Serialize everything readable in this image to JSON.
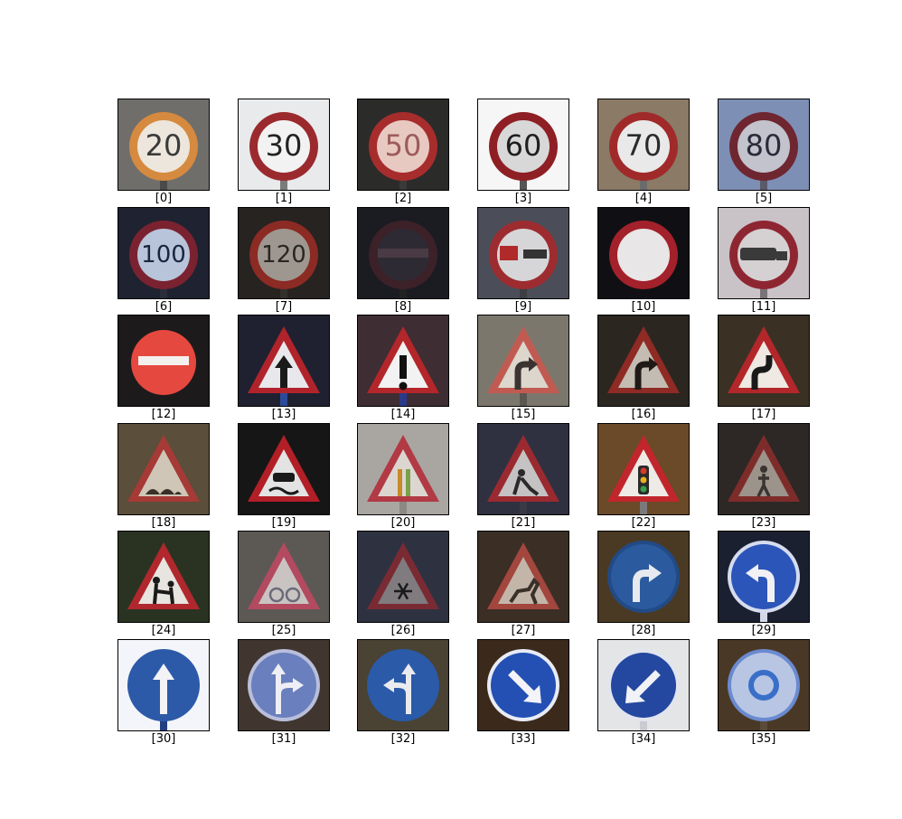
{
  "figure": {
    "rows": 6,
    "cols": 6,
    "tiles": [
      {
        "label": "[0]",
        "shape": "circle",
        "bg": "#6f6e6b",
        "fill": "#ece6dc",
        "border": "#d58a3f",
        "glyph": "20",
        "glyph_color": "#3a3a3a",
        "post": "#4a4a4a"
      },
      {
        "label": "[1]",
        "shape": "circle",
        "bg": "#e9eaec",
        "fill": "#f2f2f2",
        "border": "#9b2a2e",
        "glyph": "30",
        "glyph_color": "#222222",
        "post": "#7b7b7b"
      },
      {
        "label": "[2]",
        "shape": "circle",
        "bg": "#2b2b2a",
        "fill": "#e7c9c2",
        "border": "#a72d2d",
        "glyph": "50",
        "glyph_color": "#9c5b5b",
        "post": "#3a3a3a"
      },
      {
        "label": "[3]",
        "shape": "circle",
        "bg": "#f6f6f6",
        "fill": "#d8d8d8",
        "border": "#8e1f24",
        "glyph": "60",
        "glyph_color": "#1e1e1e",
        "post": "#555555"
      },
      {
        "label": "[4]",
        "shape": "circle",
        "bg": "#8a7a66",
        "fill": "#e9e9e9",
        "border": "#a02a2a",
        "glyph": "70",
        "glyph_color": "#2a2a2a",
        "post": "#6b6b6b"
      },
      {
        "label": "[5]",
        "shape": "circle",
        "bg": "#7e8fb5",
        "fill": "#c2c3cc",
        "border": "#6e2630",
        "glyph": "80",
        "glyph_color": "#2a2a3a",
        "post": "#5a5a6a"
      },
      {
        "label": "[6]",
        "shape": "circle",
        "bg": "#1f2230",
        "fill": "#b8c4d9",
        "border": "#7a2230",
        "glyph": "100",
        "glyph_color": "#1a2540",
        "post": "#2a2d3a"
      },
      {
        "label": "[7]",
        "shape": "circle",
        "bg": "#262320",
        "fill": "#9d9790",
        "border": "#8c2a24",
        "glyph": "120",
        "glyph_color": "#2a2622",
        "post": "#33302c"
      },
      {
        "label": "[8]",
        "shape": "circle",
        "bg": "#1b1b22",
        "fill": "#2d2a33",
        "border": "#3d2128",
        "glyph": "bar",
        "glyph_color": "#4a3a44",
        "post": "#222222"
      },
      {
        "label": "[9]",
        "shape": "circle",
        "bg": "#4b4e58",
        "fill": "#d6d6d8",
        "border": "#9d2c30",
        "glyph": "trucks",
        "glyph_color": "#b02a2a",
        "post": "#3d3d44"
      },
      {
        "label": "[10]",
        "shape": "circle",
        "bg": "#101014",
        "fill": "#e8e6e6",
        "border": "#a3212b",
        "glyph": "",
        "glyph_color": "#000000",
        "post": "#101014"
      },
      {
        "label": "[11]",
        "shape": "circle",
        "bg": "#c9c3c8",
        "fill": "#d5d0d2",
        "border": "#8e2632",
        "glyph": "truck",
        "glyph_color": "#3a3a3a",
        "post": "#7a7478"
      },
      {
        "label": "[12]",
        "shape": "noentry",
        "bg": "#1d1a1b",
        "fill": "#e5483f",
        "border": "#e5483f",
        "glyph": "bar",
        "glyph_color": "#f4f0ee",
        "post": "#1d1a1b"
      },
      {
        "label": "[13]",
        "shape": "triangle",
        "bg": "#1f2130",
        "fill": "#e8e8ec",
        "border": "#b1232b",
        "glyph": "priority",
        "glyph_color": "#1a1a1a",
        "post": "#2c4a9a"
      },
      {
        "label": "[14]",
        "shape": "triangle",
        "bg": "#3e2d33",
        "fill": "#f2f2f2",
        "border": "#b3262a",
        "glyph": "!",
        "glyph_color": "#111111",
        "post": "#2a3a8a"
      },
      {
        "label": "[15]",
        "shape": "triangle",
        "bg": "#7c776d",
        "fill": "#dcd6cd",
        "border": "#c15b52",
        "glyph": "curve-right",
        "glyph_color": "#3a3330",
        "post": "#5a5650"
      },
      {
        "label": "[16]",
        "shape": "triangle",
        "bg": "#2c2620",
        "fill": "#c4bcb2",
        "border": "#8f2a25",
        "glyph": "curve-right",
        "glyph_color": "#1f1a17",
        "post": "#2c2620"
      },
      {
        "label": "[17]",
        "shape": "triangle",
        "bg": "#3a3124",
        "fill": "#eee9e2",
        "border": "#b3262a",
        "glyph": "double-curve",
        "glyph_color": "#1a1a1a",
        "post": "#3a3124"
      },
      {
        "label": "[18]",
        "shape": "triangle",
        "bg": "#5b4e3a",
        "fill": "#cfc6b8",
        "border": "#a63a36",
        "glyph": "bumps",
        "glyph_color": "#3a3028",
        "post": "#5b4e3a"
      },
      {
        "label": "[19]",
        "shape": "triangle",
        "bg": "#161616",
        "fill": "#e3e3e3",
        "border": "#b21f27",
        "glyph": "slippery",
        "glyph_color": "#1a1a1a",
        "post": "#161616"
      },
      {
        "label": "[20]",
        "shape": "triangle",
        "bg": "#a9a6a2",
        "fill": "#dcd6d0",
        "border": "#b13a45",
        "glyph": "narrow",
        "glyph_color": "#c58a2a",
        "post": "#8c8884"
      },
      {
        "label": "[21]",
        "shape": "triangle",
        "bg": "#2f3140",
        "fill": "#c5c2c3",
        "border": "#9a2a30",
        "glyph": "worker",
        "glyph_color": "#2a2a2a",
        "post": "#3a3a45"
      },
      {
        "label": "[22]",
        "shape": "triangle",
        "bg": "#6a4a28",
        "fill": "#eeeae6",
        "border": "#c1262c",
        "glyph": "signals",
        "glyph_color": "#2a2a2a",
        "post": "#7a7a7a"
      },
      {
        "label": "[23]",
        "shape": "triangle",
        "bg": "#2d2825",
        "fill": "#9c938b",
        "border": "#7e2c2a",
        "glyph": "pedestrian",
        "glyph_color": "#3a3430",
        "post": "#2d2825"
      },
      {
        "label": "[24]",
        "shape": "triangle",
        "bg": "#2a3322",
        "fill": "#e8e4df",
        "border": "#b0282d",
        "glyph": "children",
        "glyph_color": "#1a1a1a",
        "post": "#2a3322"
      },
      {
        "label": "[25]",
        "shape": "triangle",
        "bg": "#5c5954",
        "fill": "#c9c4c2",
        "border": "#b34a60",
        "glyph": "bicycle",
        "glyph_color": "#6a6a7a",
        "post": "#5c5954"
      },
      {
        "label": "[26]",
        "shape": "triangle",
        "bg": "#2e3240",
        "fill": "#7f7b7f",
        "border": "#7a2a33",
        "glyph": "snow",
        "glyph_color": "#1a1a1a",
        "post": "#2e3240"
      },
      {
        "label": "[27]",
        "shape": "triangle",
        "bg": "#3a2e25",
        "fill": "#c3b6a9",
        "border": "#a2463e",
        "glyph": "deer",
        "glyph_color": "#3a3028",
        "post": "#3a2e25"
      },
      {
        "label": "[28]",
        "shape": "bluecircle",
        "bg": "#4a3a24",
        "fill": "#2b5a9e",
        "border": "#224a86",
        "glyph": "turn-right",
        "glyph_color": "#e6e9ef",
        "post": "#4a3a24"
      },
      {
        "label": "[29]",
        "shape": "bluecircle",
        "bg": "#1b2030",
        "fill": "#2b55b8",
        "border": "#d6dcef",
        "glyph": "turn-left",
        "glyph_color": "#f0f0f5",
        "post": "#d4d8e6"
      },
      {
        "label": "[30]",
        "shape": "bluecircle",
        "bg": "#f4f5fa",
        "fill": "#2d5aa8",
        "border": "#2d5aa8",
        "glyph": "ahead",
        "glyph_color": "#f3f3f6",
        "post": "#223f80"
      },
      {
        "label": "[31]",
        "shape": "bluecircle",
        "bg": "#40362f",
        "fill": "#6a7fbd",
        "border": "#b9bedb",
        "glyph": "ahead-right",
        "glyph_color": "#eeeef5",
        "post": "#40362f"
      },
      {
        "label": "[32]",
        "shape": "bluecircle",
        "bg": "#4a4233",
        "fill": "#2a5aa8",
        "border": "#2a5aa8",
        "glyph": "ahead-left",
        "glyph_color": "#eaeaef",
        "post": "#4a4233"
      },
      {
        "label": "[33]",
        "shape": "bluecircle",
        "bg": "#3b2a1c",
        "fill": "#2450b4",
        "border": "#e9ecf5",
        "glyph": "keep-right",
        "glyph_color": "#f3f3f8",
        "post": "#3b2a1c"
      },
      {
        "label": "[34]",
        "shape": "bluecircle",
        "bg": "#e4e5e7",
        "fill": "#2448a0",
        "border": "#e2e5ee",
        "glyph": "keep-left",
        "glyph_color": "#f1f2f6",
        "post": "#c9cbd0"
      },
      {
        "label": "[35]",
        "shape": "bluecircle",
        "bg": "#4a3826",
        "fill": "#b8c6e4",
        "border": "#6a8ad0",
        "glyph": "roundabout",
        "glyph_color": "#3a6fc8",
        "post": "#5a4a3a"
      }
    ]
  }
}
